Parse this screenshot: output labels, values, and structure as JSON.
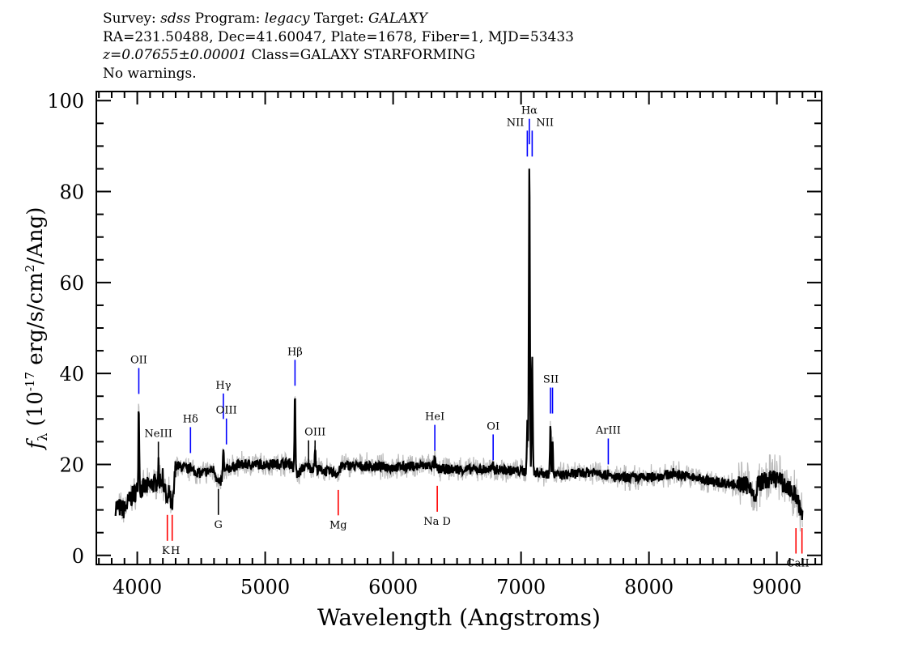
{
  "header": {
    "survey_label": "Survey:",
    "survey": "sdss",
    "program_label": "Program:",
    "program": "legacy",
    "target_label": "Target:",
    "target": "GALAXY",
    "line2": "RA=231.50488, Dec=41.60047, Plate=1678, Fiber=1, MJD=53433",
    "redshift": "z=0.07655±0.00001",
    "class": "Class=GALAXY STARFORMING",
    "warnings": "No warnings."
  },
  "chart_data": {
    "type": "line",
    "xlabel": "Wavelength (Angstroms)",
    "ylabel": "f_λ (10^-17 erg/s/cm^2/Ang)",
    "xlim": [
      3680,
      9350
    ],
    "ylim": [
      -2,
      102
    ],
    "x_ticks": [
      4000,
      5000,
      6000,
      7000,
      8000,
      9000
    ],
    "y_ticks": [
      0,
      20,
      40,
      60,
      80,
      100
    ],
    "grid": false,
    "colors": {
      "spectrum": "#000000",
      "error": "#bbbbbb",
      "emission": "#0000ff",
      "absorption": "#ff0000",
      "sky": "#000000"
    },
    "continuum": [
      [
        3830,
        10.9
      ],
      [
        3900,
        10
      ],
      [
        3950,
        12.7
      ],
      [
        4000,
        14.4
      ],
      [
        4100,
        15.3
      ],
      [
        4200,
        17
      ],
      [
        4235,
        11
      ],
      [
        4250,
        14
      ],
      [
        4273,
        9.5
      ],
      [
        4300,
        19.8
      ],
      [
        4400,
        18.9
      ],
      [
        4500,
        18
      ],
      [
        4600,
        18.9
      ],
      [
        4640,
        15.5
      ],
      [
        4700,
        19
      ],
      [
        4800,
        20
      ],
      [
        5000,
        20
      ],
      [
        5200,
        20.3
      ],
      [
        5250,
        17.5
      ],
      [
        5300,
        19.5
      ],
      [
        5400,
        19
      ],
      [
        5571,
        18
      ],
      [
        5600,
        19.8
      ],
      [
        6000,
        19.4
      ],
      [
        6300,
        19.8
      ],
      [
        6345,
        19
      ],
      [
        6500,
        18.9
      ],
      [
        6800,
        18.9
      ],
      [
        7000,
        18.5
      ],
      [
        7100,
        18.3
      ],
      [
        7300,
        17.6
      ],
      [
        7600,
        18.5
      ],
      [
        7700,
        17.1
      ],
      [
        8000,
        17.1
      ],
      [
        8200,
        18
      ],
      [
        8500,
        16.2
      ],
      [
        8800,
        15.3
      ],
      [
        8830,
        11
      ],
      [
        8850,
        16
      ],
      [
        9000,
        17.1
      ],
      [
        9100,
        14.4
      ],
      [
        9150,
        13.2
      ],
      [
        9200,
        8.2
      ]
    ],
    "emission_peaks": [
      [
        4012,
        34
      ],
      [
        4165,
        19.5
      ],
      [
        4416,
        20.5
      ],
      [
        4673,
        23.7
      ],
      [
        5233,
        35.8
      ],
      [
        5339,
        20
      ],
      [
        5390,
        23.7
      ],
      [
        6326,
        21.5
      ],
      [
        6782,
        20
      ],
      [
        7049,
        28.7
      ],
      [
        7065,
        86.6
      ],
      [
        7087,
        44.4
      ],
      [
        7230,
        30
      ],
      [
        7246,
        25
      ],
      [
        7682,
        19
      ]
    ],
    "line_markers": [
      {
        "label": "OII",
        "wave": 4012,
        "color": "#0000ff",
        "y": [
          35.5,
          41.2
        ],
        "label_pos": "above"
      },
      {
        "label": "NeIII",
        "wave": 4165,
        "color": "#000000",
        "y": [
          19.3,
          25
        ],
        "label_pos": "above"
      },
      {
        "label": "Hδ",
        "wave": 4416,
        "color": "#0000ff",
        "y": [
          22.5,
          28.2
        ],
        "label_pos": "above"
      },
      {
        "label": "Hγ",
        "wave": 4673,
        "color": "#0000ff",
        "y": [
          30,
          35.6
        ],
        "label_pos": "above"
      },
      {
        "label": "OIII",
        "wave": 4697,
        "color": "#0000ff",
        "y": [
          24.4,
          30.1
        ],
        "label_pos": "above"
      },
      {
        "label": "Hβ",
        "wave": 5233,
        "color": "#0000ff",
        "y": [
          37.3,
          43
        ],
        "label_pos": "above"
      },
      {
        "label": "",
        "wave": 5339,
        "color": "#000000",
        "y": [
          19.6,
          25.3
        ],
        "label_pos": "above"
      },
      {
        "label": "OIII",
        "wave": 5390,
        "color": "#000000",
        "y": [
          19.6,
          25.3
        ],
        "label_pos": "above"
      },
      {
        "label": "HeI",
        "wave": 6326,
        "color": "#0000ff",
        "y": [
          23,
          28.7
        ],
        "label_pos": "above"
      },
      {
        "label": "OI",
        "wave": 6782,
        "color": "#0000ff",
        "y": [
          20.9,
          26.6
        ],
        "label_pos": "above"
      },
      {
        "label": "NII",
        "wave": 7049,
        "color": "#0000ff",
        "y": [
          87.7,
          93.4
        ],
        "label_pos": "left"
      },
      {
        "label": "Hα",
        "wave": 7065,
        "color": "#0000ff",
        "y": [
          90.4,
          96
        ],
        "label_pos": "above"
      },
      {
        "label": "NII",
        "wave": 7087,
        "color": "#0000ff",
        "y": [
          87.7,
          93.4
        ],
        "label_pos": "right"
      },
      {
        "label": "",
        "wave": 7230,
        "color": "#0000ff",
        "y": [
          31.2,
          36.9
        ],
        "label_pos": "above"
      },
      {
        "label": "SII",
        "wave": 7246,
        "color": "#0000ff",
        "y": [
          31.2,
          36.9
        ],
        "label_pos": "above-left"
      },
      {
        "label": "ArIII",
        "wave": 7682,
        "color": "#0000ff",
        "y": [
          20,
          25.7
        ],
        "label_pos": "above"
      },
      {
        "label": "K",
        "wave": 4235,
        "color": "#ff0000",
        "y": [
          3.2,
          8.9
        ],
        "label_pos": "below"
      },
      {
        "label": "H",
        "wave": 4273,
        "color": "#ff0000",
        "y": [
          3.2,
          8.9
        ],
        "label_pos": "below"
      },
      {
        "label": "G",
        "wave": 4634,
        "color": "#000000",
        "y": [
          8.9,
          14.6
        ],
        "label_pos": "below"
      },
      {
        "label": "Mg",
        "wave": 5571,
        "color": "#ff0000",
        "y": [
          8.8,
          14.4
        ],
        "label_pos": "below"
      },
      {
        "label": "Na D",
        "wave": 6345,
        "color": "#ff0000",
        "y": [
          9.6,
          15.3
        ],
        "label_pos": "below"
      },
      {
        "label": "",
        "wave": 9149,
        "color": "#ff0000",
        "y": [
          0.4,
          6
        ],
        "label_pos": "below"
      },
      {
        "label": "CaII",
        "wave": 9196,
        "color": "#ff0000",
        "y": [
          0.4,
          6
        ],
        "label_pos": "below-left"
      }
    ]
  }
}
